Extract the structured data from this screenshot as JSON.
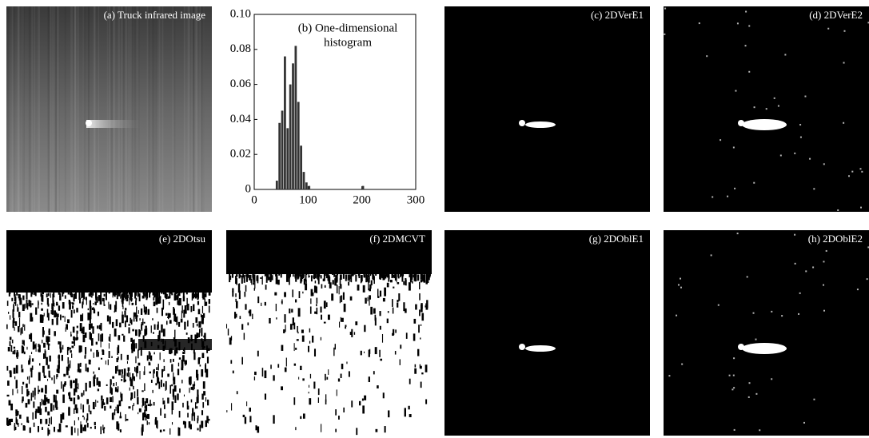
{
  "panels": [
    {
      "label": "(a) Truck infrared image"
    },
    {
      "label": "(c) 2DVerE1"
    },
    {
      "label": "(d) 2DVerE2"
    },
    {
      "label": "(e) 2DOtsu"
    },
    {
      "label": "(f) 2DMCVT"
    },
    {
      "label": "(g) 2DOblE1"
    },
    {
      "label": "(h) 2DOblE2"
    }
  ],
  "chart_data": {
    "type": "histogram",
    "title_lines": [
      "(b) One-dimensional",
      "histogram"
    ],
    "color": "#333333",
    "bins": [
      0,
      5,
      10,
      15,
      20,
      25,
      30,
      35,
      40,
      45,
      50,
      55,
      60,
      65,
      70,
      75,
      80,
      85,
      90,
      95,
      100,
      105,
      110,
      115,
      120,
      125,
      130,
      135,
      140,
      145,
      150,
      155,
      160,
      165,
      170,
      175,
      180,
      185,
      190,
      195,
      200,
      205,
      210,
      215,
      220,
      225,
      230,
      235,
      240,
      245,
      250,
      255,
      260,
      265,
      270,
      275,
      280,
      285,
      290,
      295,
      300
    ],
    "values": [
      0,
      0,
      0,
      0,
      0,
      0,
      0,
      0,
      0.005,
      0.038,
      0.045,
      0.076,
      0.035,
      0.06,
      0.072,
      0.082,
      0.05,
      0.025,
      0.01,
      0.004,
      0.002,
      0,
      0,
      0,
      0,
      0,
      0,
      0,
      0,
      0,
      0,
      0,
      0,
      0,
      0,
      0,
      0,
      0,
      0,
      0,
      0.002,
      0,
      0,
      0,
      0,
      0,
      0,
      0,
      0,
      0,
      0,
      0,
      0,
      0,
      0,
      0,
      0,
      0,
      0,
      0
    ],
    "xlim": [
      0,
      300
    ],
    "xticks": [
      0,
      100,
      200,
      300
    ],
    "ylim": [
      0,
      0.1
    ],
    "yticks": [
      0,
      0.02,
      0.04,
      0.06,
      0.08,
      {
        "value": 0.1,
        "label": "0.10"
      }
    ]
  }
}
